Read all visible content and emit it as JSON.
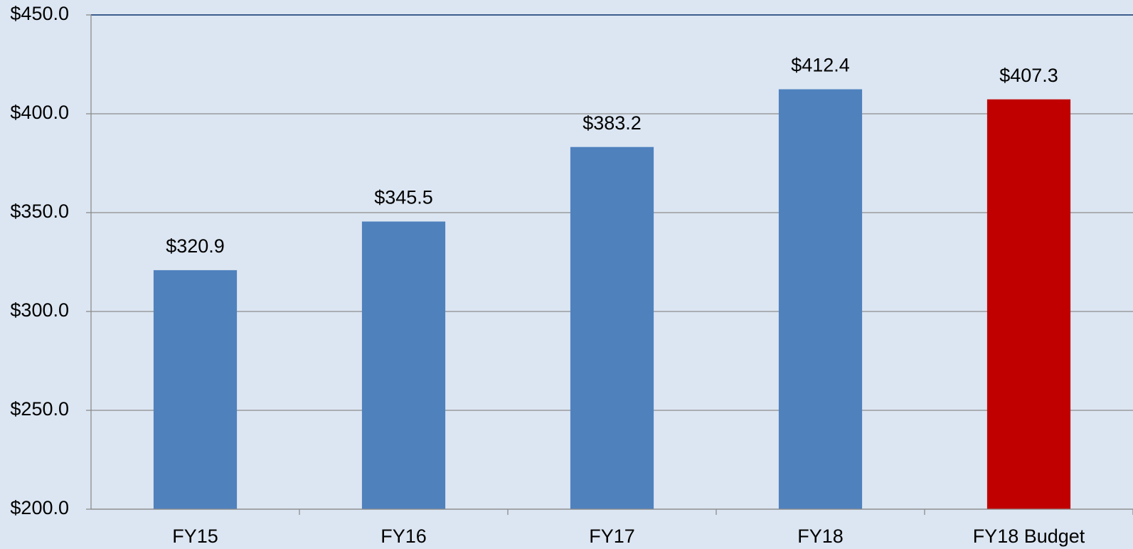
{
  "chart_data": {
    "type": "bar",
    "categories": [
      "FY15",
      "FY16",
      "FY17",
      "FY18",
      "FY18 Budget"
    ],
    "values": [
      320.9,
      345.5,
      383.2,
      412.4,
      407.3
    ],
    "value_labels": [
      "$320.9",
      "$345.5",
      "$383.2",
      "$412.4",
      "$407.3"
    ],
    "colors": [
      "#4f81bd",
      "#4f81bd",
      "#4f81bd",
      "#4f81bd",
      "#c00000"
    ],
    "ylim": [
      200,
      450
    ],
    "yticks": [
      {
        "value": 200,
        "label": "$200.0"
      },
      {
        "value": 250,
        "label": "$250.0"
      },
      {
        "value": 300,
        "label": "$300.0"
      },
      {
        "value": 350,
        "label": "$350.0"
      },
      {
        "value": 400,
        "label": "$400.0"
      },
      {
        "value": 450,
        "label": "$450.0"
      }
    ],
    "grid": true
  }
}
